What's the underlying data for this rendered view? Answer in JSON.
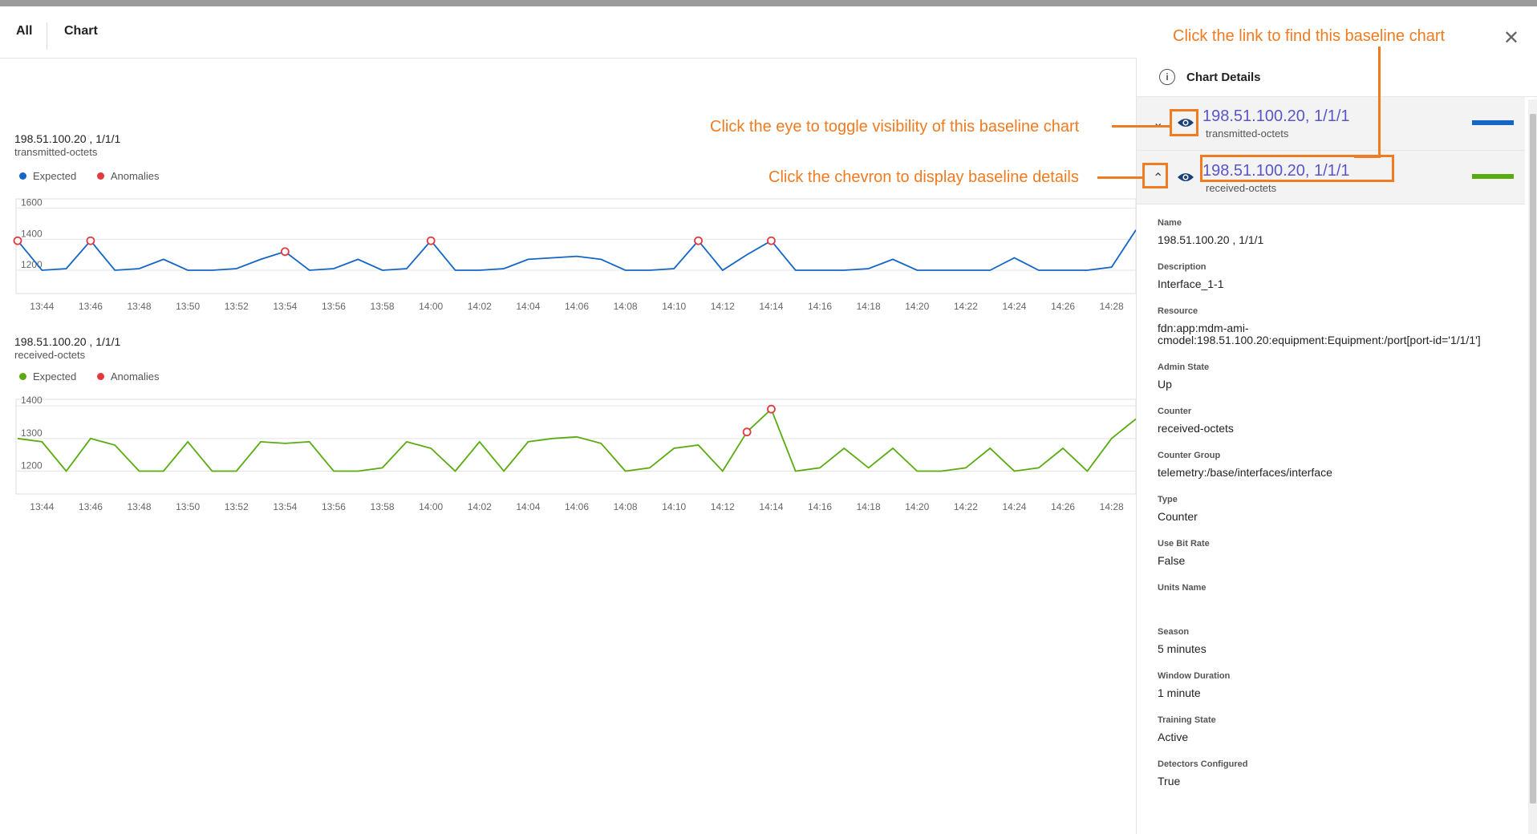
{
  "tabs": [
    "All",
    "Chart"
  ],
  "close_label": "✕",
  "charts": [
    {
      "title": "198.51.100.20 , 1/1/1",
      "subtitle": "transmitted-octets",
      "legend": [
        {
          "label": "Expected",
          "color": "#1466c6"
        },
        {
          "label": "Anomalies",
          "color": "#e0393e"
        }
      ],
      "line_color": "#1466c6"
    },
    {
      "title": "198.51.100.20 , 1/1/1",
      "subtitle": "received-octets",
      "legend": [
        {
          "label": "Expected",
          "color": "#5aab10"
        },
        {
          "label": "Anomalies",
          "color": "#e0393e"
        }
      ],
      "line_color": "#5aab10"
    }
  ],
  "chart_data": [
    {
      "type": "line",
      "title": "198.51.100.20 , 1/1/1",
      "subtitle": "transmitted-octets",
      "x": [
        "13:43",
        "13:44",
        "13:45",
        "13:46",
        "13:47",
        "13:48",
        "13:49",
        "13:50",
        "13:51",
        "13:52",
        "13:53",
        "13:54",
        "13:55",
        "13:56",
        "13:57",
        "13:58",
        "13:59",
        "14:00",
        "14:01",
        "14:02",
        "14:03",
        "14:04",
        "14:05",
        "14:06",
        "14:07",
        "14:08",
        "14:09",
        "14:10",
        "14:11",
        "14:12",
        "14:13",
        "14:14",
        "14:15",
        "14:16",
        "14:17",
        "14:18",
        "14:19",
        "14:20",
        "14:21",
        "14:22",
        "14:23",
        "14:24",
        "14:25",
        "14:26",
        "14:27",
        "14:28",
        "14:29"
      ],
      "x_ticks": [
        "13:44",
        "13:46",
        "13:48",
        "13:50",
        "13:52",
        "13:54",
        "13:56",
        "13:58",
        "14:00",
        "14:02",
        "14:04",
        "14:06",
        "14:08",
        "14:10",
        "14:12",
        "14:14",
        "14:16",
        "14:18",
        "14:20",
        "14:22",
        "14:24",
        "14:26",
        "14:28"
      ],
      "series": [
        {
          "name": "Expected",
          "values": [
            1390,
            1200,
            1210,
            1390,
            1200,
            1210,
            1270,
            1200,
            1200,
            1210,
            1270,
            1320,
            1200,
            1210,
            1270,
            1200,
            1210,
            1390,
            1200,
            1200,
            1210,
            1270,
            1280,
            1290,
            1270,
            1200,
            1200,
            1210,
            1390,
            1200,
            1300,
            1390,
            1200,
            1200,
            1200,
            1210,
            1270,
            1200,
            1200,
            1200,
            1200,
            1280,
            1200,
            1200,
            1200,
            1220,
            1460
          ]
        }
      ],
      "anomalies_x": [
        "13:43",
        "13:46",
        "13:54",
        "14:00",
        "14:11",
        "14:14"
      ],
      "anomalies_y": [
        1390,
        1390,
        1320,
        1390,
        1390,
        1390
      ],
      "yticks": [
        1200,
        1400,
        1600
      ],
      "ylim": [
        1050,
        1660
      ]
    },
    {
      "type": "line",
      "title": "198.51.100.20 , 1/1/1",
      "subtitle": "received-octets",
      "x": [
        "13:43",
        "13:44",
        "13:45",
        "13:46",
        "13:47",
        "13:48",
        "13:49",
        "13:50",
        "13:51",
        "13:52",
        "13:53",
        "13:54",
        "13:55",
        "13:56",
        "13:57",
        "13:58",
        "13:59",
        "14:00",
        "14:01",
        "14:02",
        "14:03",
        "14:04",
        "14:05",
        "14:06",
        "14:07",
        "14:08",
        "14:09",
        "14:10",
        "14:11",
        "14:12",
        "14:13",
        "14:14",
        "14:15",
        "14:16",
        "14:17",
        "14:18",
        "14:19",
        "14:20",
        "14:21",
        "14:22",
        "14:23",
        "14:24",
        "14:25",
        "14:26",
        "14:27",
        "14:28",
        "14:29"
      ],
      "x_ticks": [
        "13:44",
        "13:46",
        "13:48",
        "13:50",
        "13:52",
        "13:54",
        "13:56",
        "13:58",
        "14:00",
        "14:02",
        "14:04",
        "14:06",
        "14:08",
        "14:10",
        "14:12",
        "14:14",
        "14:16",
        "14:18",
        "14:20",
        "14:22",
        "14:24",
        "14:26",
        "14:28"
      ],
      "series": [
        {
          "name": "Expected",
          "values": [
            1300,
            1290,
            1200,
            1300,
            1280,
            1200,
            1200,
            1290,
            1200,
            1200,
            1290,
            1285,
            1290,
            1200,
            1200,
            1210,
            1290,
            1270,
            1200,
            1290,
            1200,
            1290,
            1300,
            1305,
            1285,
            1200,
            1210,
            1270,
            1280,
            1200,
            1320,
            1390,
            1200,
            1210,
            1270,
            1210,
            1270,
            1200,
            1200,
            1210,
            1270,
            1200,
            1210,
            1270,
            1200,
            1300,
            1360
          ]
        }
      ],
      "anomalies_x": [
        "14:13",
        "14:14"
      ],
      "anomalies_y": [
        1320,
        1390
      ],
      "yticks": [
        1200,
        1300,
        1400
      ],
      "ylim": [
        1130,
        1420
      ]
    }
  ],
  "panel": {
    "title": "Chart Details",
    "series": [
      {
        "link": "198.51.100.20, 1/1/1",
        "sub": "transmitted-octets",
        "color": "#1466c6",
        "chevron": "⌄"
      },
      {
        "link": "198.51.100.20, 1/1/1",
        "sub": "received-octets",
        "color": "#5aab10",
        "chevron": "⌃"
      }
    ],
    "details": [
      {
        "label": "Name",
        "value": "198.51.100.20 , 1/1/1"
      },
      {
        "label": "Description",
        "value": "Interface_1-1"
      },
      {
        "label": "Resource",
        "value": "fdn:app:mdm-ami-cmodel:198.51.100.20:equipment:Equipment:/port[port-id='1/1/1']"
      },
      {
        "label": "Admin State",
        "value": "Up"
      },
      {
        "label": "Counter",
        "value": "received-octets"
      },
      {
        "label": "Counter Group",
        "value": "telemetry:/base/interfaces/interface"
      },
      {
        "label": "Type",
        "value": "Counter"
      },
      {
        "label": "Use Bit Rate",
        "value": "False"
      },
      {
        "label": "Units Name",
        "value": ""
      },
      {
        "label": "Season",
        "value": "5 minutes"
      },
      {
        "label": "Window Duration",
        "value": "1 minute"
      },
      {
        "label": "Training State",
        "value": "Active"
      },
      {
        "label": "Detectors Configured",
        "value": "True"
      }
    ]
  },
  "annotations": {
    "link_note": "Click the link to find this baseline chart",
    "eye_note": "Click the eye to toggle visibility of this baseline chart",
    "chevron_note": "Click the chevron to display baseline details",
    "accent": "#f07b21"
  }
}
